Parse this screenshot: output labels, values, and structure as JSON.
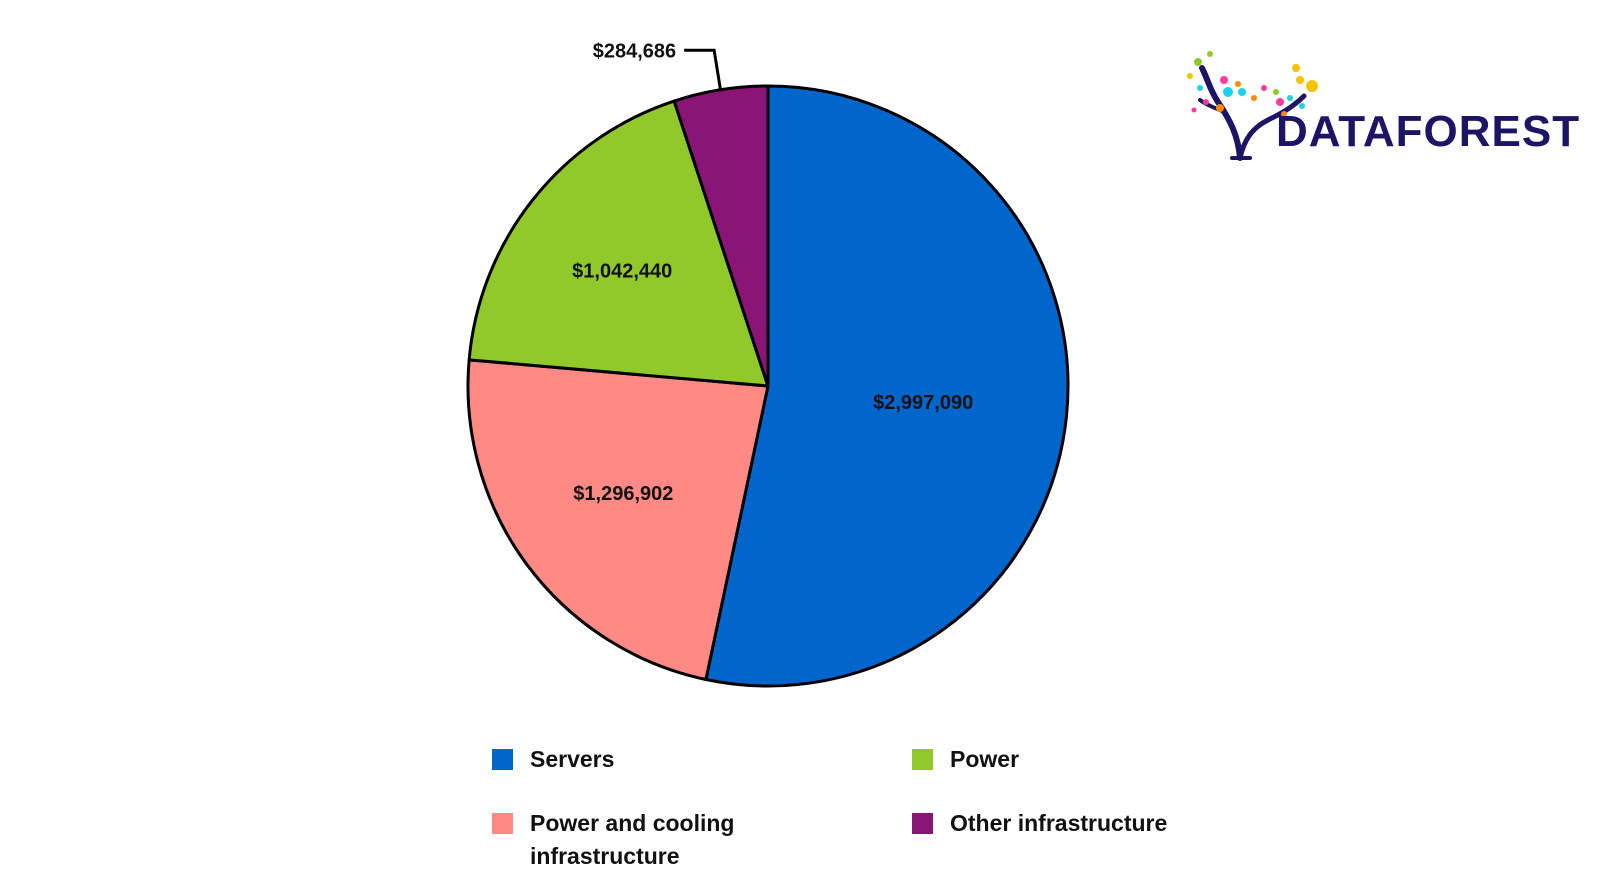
{
  "chart_data": {
    "type": "pie",
    "start_angle_deg": 0,
    "direction": "clockwise",
    "slices": [
      {
        "label": "Servers",
        "value": 2997090,
        "value_label": "$2,997,090",
        "color": "#0066cc"
      },
      {
        "label": "Power and cooling infrastructure",
        "value": 1296902,
        "value_label": "$1,296,902",
        "color": "#ff8a85"
      },
      {
        "label": "Power",
        "value": 1042440,
        "value_label": "$1,042,440",
        "color": "#92c92a"
      },
      {
        "label": "Other infrastructure",
        "value": 284686,
        "value_label": "$284,686",
        "color": "#8a1577"
      }
    ],
    "legend": {
      "placement": "bottom",
      "items": [
        {
          "label": "Servers",
          "color": "#0066cc"
        },
        {
          "label": "Power",
          "color": "#92c92a"
        },
        {
          "label": "Power and cooling infrastructure",
          "color": "#ff8a85"
        },
        {
          "label": "Other infrastructure",
          "color": "#8a1577"
        }
      ]
    }
  },
  "logo": {
    "text": "DATAFOREST",
    "color": "#1c1464"
  }
}
